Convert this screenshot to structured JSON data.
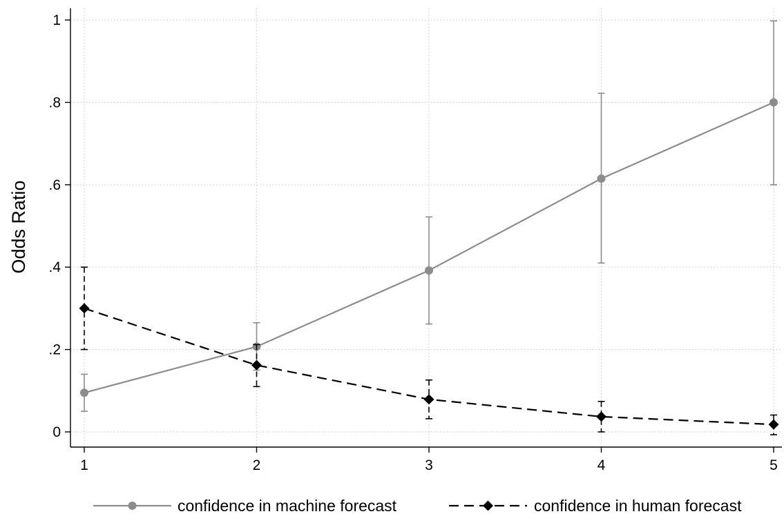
{
  "chart_data": {
    "type": "line",
    "title": "",
    "xlabel": "",
    "ylabel": "Odds Ratio",
    "x": [
      1,
      2,
      3,
      4,
      5
    ],
    "xticks": [
      "1",
      "2",
      "3",
      "4",
      "5"
    ],
    "xlim": [
      1,
      5
    ],
    "ylim": [
      -0.01,
      1.03
    ],
    "yticks": [
      {
        "value": 0,
        "label": "0"
      },
      {
        "value": 0.2,
        "label": ".2"
      },
      {
        "value": 0.4,
        "label": ".4"
      },
      {
        "value": 0.6,
        "label": ".6"
      },
      {
        "value": 0.8,
        "label": ".8"
      },
      {
        "value": 1,
        "label": "1"
      }
    ],
    "grid": true,
    "legend_position": "bottom",
    "series": [
      {
        "name": "confidence in machine forecast",
        "values": [
          0.095,
          0.207,
          0.392,
          0.615,
          0.8
        ],
        "ci_low": [
          0.05,
          0.15,
          0.262,
          0.41,
          0.6
        ],
        "ci_high": [
          0.14,
          0.265,
          0.522,
          0.822,
          0.998
        ],
        "color": "#8c8c8c",
        "line_style": "solid",
        "marker": "circle"
      },
      {
        "name": "confidence in human forecast",
        "values": [
          0.3,
          0.162,
          0.079,
          0.037,
          0.018
        ],
        "ci_low": [
          0.2,
          0.11,
          0.032,
          0.0,
          -0.007
        ],
        "ci_high": [
          0.4,
          0.212,
          0.126,
          0.074,
          0.041
        ],
        "color": "#000000",
        "line_style": "dashed",
        "marker": "diamond"
      }
    ]
  }
}
